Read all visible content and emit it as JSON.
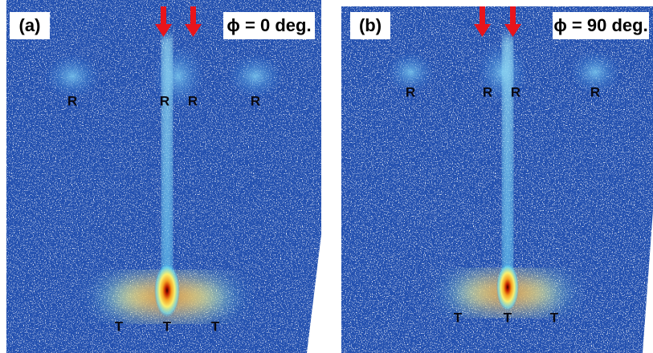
{
  "panels": [
    {
      "label": "(a)",
      "angle": "ϕ = 0 deg.",
      "reflections": [
        "R",
        "R",
        "R",
        "R"
      ],
      "transmissions": [
        "T",
        "T",
        "T"
      ]
    },
    {
      "label": "(b)",
      "angle": "ϕ = 90 deg.",
      "reflections": [
        "R",
        "R",
        "R",
        "R"
      ],
      "transmissions": [
        "T",
        "T",
        "T"
      ]
    }
  ]
}
